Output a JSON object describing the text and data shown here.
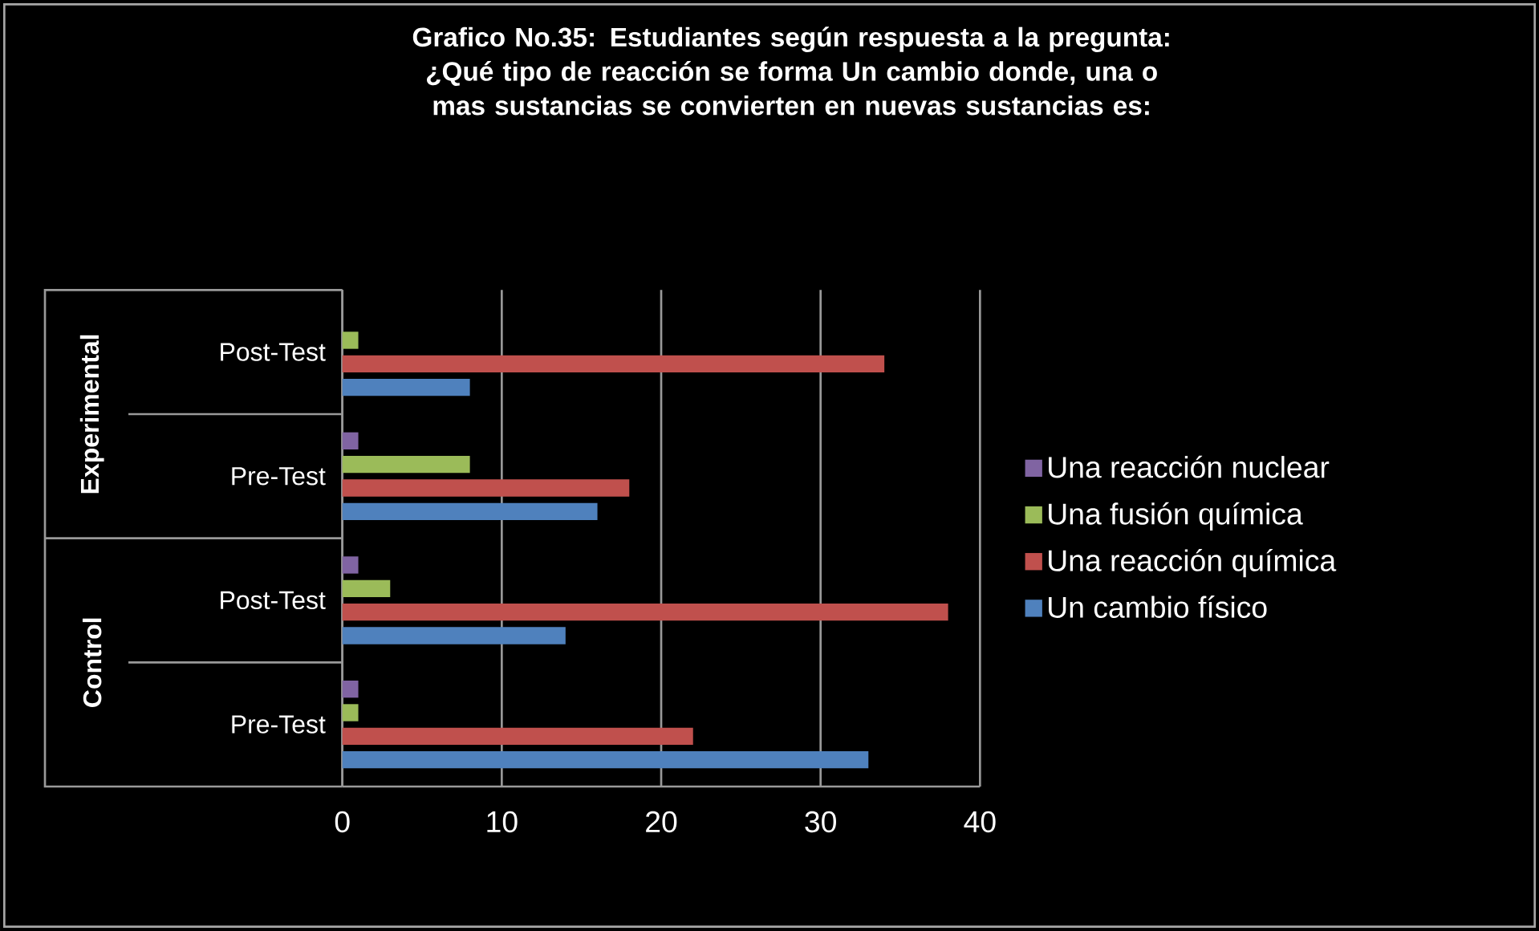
{
  "chart_data": {
    "type": "bar",
    "orientation": "horizontal",
    "title": "Grafico No.35: Estudiantes según respuesta a la pregunta: ¿Qué tipo de reacción se forma Un cambio donde, una o mas sustancias se convierten en nuevas sustancias es:",
    "categories": [
      "Post-Test",
      "Pre-Test",
      "Post-Test",
      "Pre-Test"
    ],
    "annotations": [
      "Experimental",
      "Control"
    ],
    "series": [
      {
        "name": "Un cambio físico",
        "color": "#4f81bd",
        "values": [
          8,
          16,
          14,
          33
        ]
      },
      {
        "name": "Una reacción química",
        "color": "#c0504d",
        "values": [
          34,
          18,
          38,
          22
        ]
      },
      {
        "name": "Una fusión química",
        "color": "#9bbb59",
        "values": [
          1,
          8,
          3,
          1
        ]
      },
      {
        "name": "Una reacción nuclear",
        "color": "#8064a2",
        "values": [
          0,
          1,
          1,
          1
        ]
      }
    ],
    "xlim": [
      0,
      40
    ],
    "xticks": [
      0,
      10,
      20,
      30,
      40
    ],
    "grid": "x",
    "legend": "right"
  }
}
